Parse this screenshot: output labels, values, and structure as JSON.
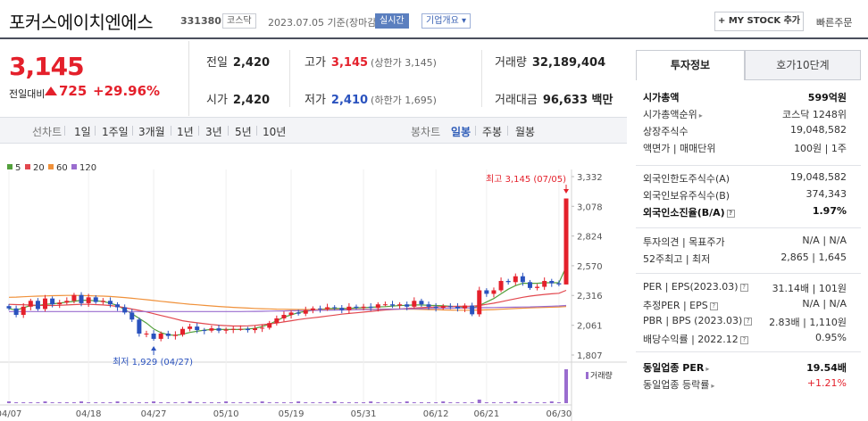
{
  "header": {
    "name": "포커스에이치엔에스",
    "code": "331380",
    "market": "코스닥",
    "date": "2023.07.05  기준(장마감)",
    "realtime": "실시간",
    "company_info": "기업개요",
    "my_stock": "+ MY STOCK 추가",
    "quick_order": "빠른주문"
  },
  "quote": {
    "price": "3,145",
    "diff_label": "전일대비",
    "diff": "725",
    "diff_pct": "+29.96%",
    "prev_close_label": "전일",
    "prev_close": "2,420",
    "high_label": "고가",
    "high": "3,145",
    "upper_limit": "(상한가 3,145)",
    "volume_label": "거래량",
    "volume": "32,189,404",
    "open_label": "시가",
    "open": "2,420",
    "low_label": "저가",
    "low": "2,410",
    "lower_limit": "(하한가 1,695)",
    "amount_label": "거래대금",
    "amount": "96,633 백만",
    "up_color": "#e4202b",
    "down_color": "#2a52be"
  },
  "periods": {
    "line_chart": "선차트",
    "items": [
      "1일",
      "1주일",
      "3개월",
      "1년",
      "3년",
      "5년",
      "10년"
    ],
    "candle_chart": "봉차트",
    "candle_items": [
      "일봉",
      "주봉",
      "월봉"
    ],
    "active": "일봉"
  },
  "legend": [
    {
      "label": "5",
      "color": "#53a03c"
    },
    {
      "label": "20",
      "color": "#e2474e"
    },
    {
      "label": "60",
      "color": "#f0913a"
    },
    {
      "label": "120",
      "color": "#9a6dcf"
    }
  ],
  "chart": {
    "high_note": "최고 3,145 (07/05)",
    "low_note": "최저 1,929 (04/27)",
    "volume_label": "거래량",
    "y_labels": [
      "3,332",
      "3,078",
      "2,824",
      "2,570",
      "2,316",
      "2,061",
      "1,807"
    ],
    "x_labels": [
      "04/07",
      "04/18",
      "04/27",
      "05/10",
      "05/19",
      "05/31",
      "06/12",
      "06/21",
      "06/30"
    ]
  },
  "chart_data": {
    "type": "candlestick",
    "title": "",
    "xlabel": "",
    "ylabel": "",
    "ylim": [
      1807,
      3332
    ],
    "x_ticks": [
      "04/07",
      "04/18",
      "04/27",
      "05/10",
      "05/19",
      "05/31",
      "06/12",
      "06/21",
      "06/30"
    ],
    "y_ticks": [
      3332,
      3078,
      2824,
      2570,
      2316,
      2061,
      1807
    ],
    "series": [
      {
        "name": "candles",
        "close": [
          2205,
          2150,
          2220,
          2270,
          2200,
          2290,
          2240,
          2255,
          2270,
          2320,
          2250,
          2300,
          2260,
          2270,
          2240,
          2215,
          2170,
          2110,
          1990,
          1990,
          1945,
          1990,
          1970,
          1980,
          2030,
          2050,
          2020,
          2015,
          2035,
          2015,
          2025,
          2030,
          2030,
          2020,
          2035,
          2040,
          2080,
          2120,
          2150,
          2170,
          2160,
          2190,
          2205,
          2200,
          2215,
          2210,
          2190,
          2220,
          2210,
          2220,
          2210,
          2240,
          2240,
          2230,
          2240,
          2220,
          2270,
          2240,
          2220,
          2210,
          2225,
          2220,
          2205,
          2230,
          2155,
          2360,
          2330,
          2360,
          2440,
          2430,
          2480,
          2430,
          2380,
          2390,
          2440,
          2420,
          2410,
          3145
        ]
      }
    ],
    "sma": {
      "5": [
        2205,
        2190,
        2210,
        2230,
        2230,
        2240,
        2245,
        2250,
        2260,
        2265,
        2275,
        2275,
        2270,
        2265,
        2250,
        2230,
        2195,
        2160,
        2120,
        2080,
        2030,
        1998,
        1980,
        1975,
        1985,
        2000,
        2010,
        2020,
        2025,
        2025,
        2025,
        2025,
        2025,
        2030,
        2035,
        2050,
        2070,
        2100,
        2130,
        2150,
        2170,
        2180,
        2190,
        2195,
        2205,
        2205,
        2205,
        2205,
        2210,
        2212,
        2215,
        2218,
        2220,
        2225,
        2230,
        2232,
        2235,
        2235,
        2232,
        2230,
        2228,
        2224,
        2220,
        2215,
        2205,
        2230,
        2260,
        2290,
        2330,
        2370,
        2400,
        2420,
        2420,
        2420,
        2425,
        2425,
        2425,
        2560
      ],
      "20": [
        2240,
        2238,
        2236,
        2234,
        2232,
        2230,
        2230,
        2232,
        2235,
        2238,
        2240,
        2240,
        2238,
        2235,
        2230,
        2222,
        2212,
        2200,
        2188,
        2175,
        2160,
        2145,
        2130,
        2115,
        2100,
        2090,
        2082,
        2075,
        2068,
        2062,
        2058,
        2055,
        2055,
        2056,
        2060,
        2066,
        2072,
        2080,
        2090,
        2100,
        2110,
        2118,
        2125,
        2132,
        2140,
        2148,
        2156,
        2162,
        2168,
        2174,
        2180,
        2186,
        2192,
        2196,
        2200,
        2204,
        2208,
        2212,
        2215,
        2218,
        2220,
        2222,
        2223,
        2224,
        2224,
        2230,
        2240,
        2250,
        2262,
        2275,
        2288,
        2300,
        2310,
        2318,
        2325,
        2330,
        2335,
        2360
      ],
      "60": [
        2300,
        2302,
        2305,
        2308,
        2310,
        2312,
        2314,
        2315,
        2316,
        2316,
        2315,
        2314,
        2312,
        2310,
        2307,
        2303,
        2298,
        2292,
        2286,
        2280,
        2273,
        2266,
        2260,
        2253,
        2247,
        2241,
        2236,
        2231,
        2226,
        2222,
        2218,
        2214,
        2211,
        2208,
        2205,
        2203,
        2201,
        2199,
        2198,
        2197,
        2196,
        2196,
        2195,
        2195,
        2195,
        2195,
        2196,
        2196,
        2197,
        2198,
        2198,
        2199,
        2200,
        2200,
        2200,
        2199,
        2198,
        2197,
        2195,
        2194,
        2192,
        2191,
        2190,
        2190,
        2190,
        2191,
        2193,
        2195,
        2198,
        2201,
        2204,
        2207,
        2210,
        2212,
        2214,
        2216,
        2218,
        2222
      ],
      "120": [
        2178,
        2178,
        2178,
        2178,
        2178,
        2178,
        2178,
        2178,
        2178,
        2178,
        2178,
        2178,
        2178,
        2178,
        2178,
        2178,
        2178,
        2178,
        2178,
        2178,
        2178,
        2178,
        2178,
        2178,
        2178,
        2178,
        2178,
        2178,
        2178,
        2178,
        2178,
        2178,
        2178,
        2179,
        2180,
        2181,
        2182,
        2183,
        2184,
        2185,
        2186,
        2187,
        2188,
        2189,
        2190,
        2191,
        2192,
        2193,
        2194,
        2195,
        2196,
        2197,
        2198,
        2199,
        2200,
        2201,
        2202,
        2203,
        2204,
        2205,
        2206,
        2207,
        2208,
        2209,
        2210,
        2211,
        2212,
        2213,
        2214,
        2215,
        2216,
        2217,
        2218,
        2220,
        2222,
        2224,
        2226,
        2230
      ]
    },
    "max": {
      "value": 3145,
      "date": "07/05"
    },
    "min": {
      "value": 1929,
      "date": "04/27"
    }
  },
  "panel": {
    "tab_info": "투자정보",
    "tab_ask": "호가10단계",
    "rows": [
      {
        "k": "시가총액",
        "v": "599억원",
        "kb": true,
        "vb": true
      },
      {
        "k": "시가총액순위",
        "v": "코스닥 1248위",
        "arrow": true
      },
      {
        "k": "상장주식수",
        "v": "19,048,582"
      },
      {
        "k": "액면가 | 매매단위",
        "v": "100원 | 1주"
      },
      {
        "k": "외국인한도주식수(A)",
        "v": "19,048,582"
      },
      {
        "k": "외국인보유주식수(B)",
        "v": "374,343"
      },
      {
        "k": "외국인소진율(B/A)",
        "v": "1.97%",
        "kb": true,
        "vb": true,
        "q": true
      },
      {
        "k": "투자의견 | 목표주가",
        "v": "N/A | N/A"
      },
      {
        "k": "52주최고 | 최저",
        "v": "2,865 | 1,645"
      },
      {
        "k": "PER | EPS(2023.03)",
        "v": "31.14배 | 101원",
        "q": true
      },
      {
        "k": "추정PER | EPS",
        "v": "N/A | N/A",
        "q": true
      },
      {
        "k": "PBR | BPS (2023.03)",
        "v": "2.83배 | 1,110원",
        "q": true
      },
      {
        "k": "배당수익률 | 2022.12",
        "v": "0.95%",
        "q": true
      },
      {
        "k": "동일업종 PER",
        "v": "19.54배",
        "kb": true,
        "vb": true,
        "arrow": true
      },
      {
        "k": "동일업종 등락률",
        "v": "+1.21%",
        "red": true,
        "arrow": true
      }
    ]
  }
}
